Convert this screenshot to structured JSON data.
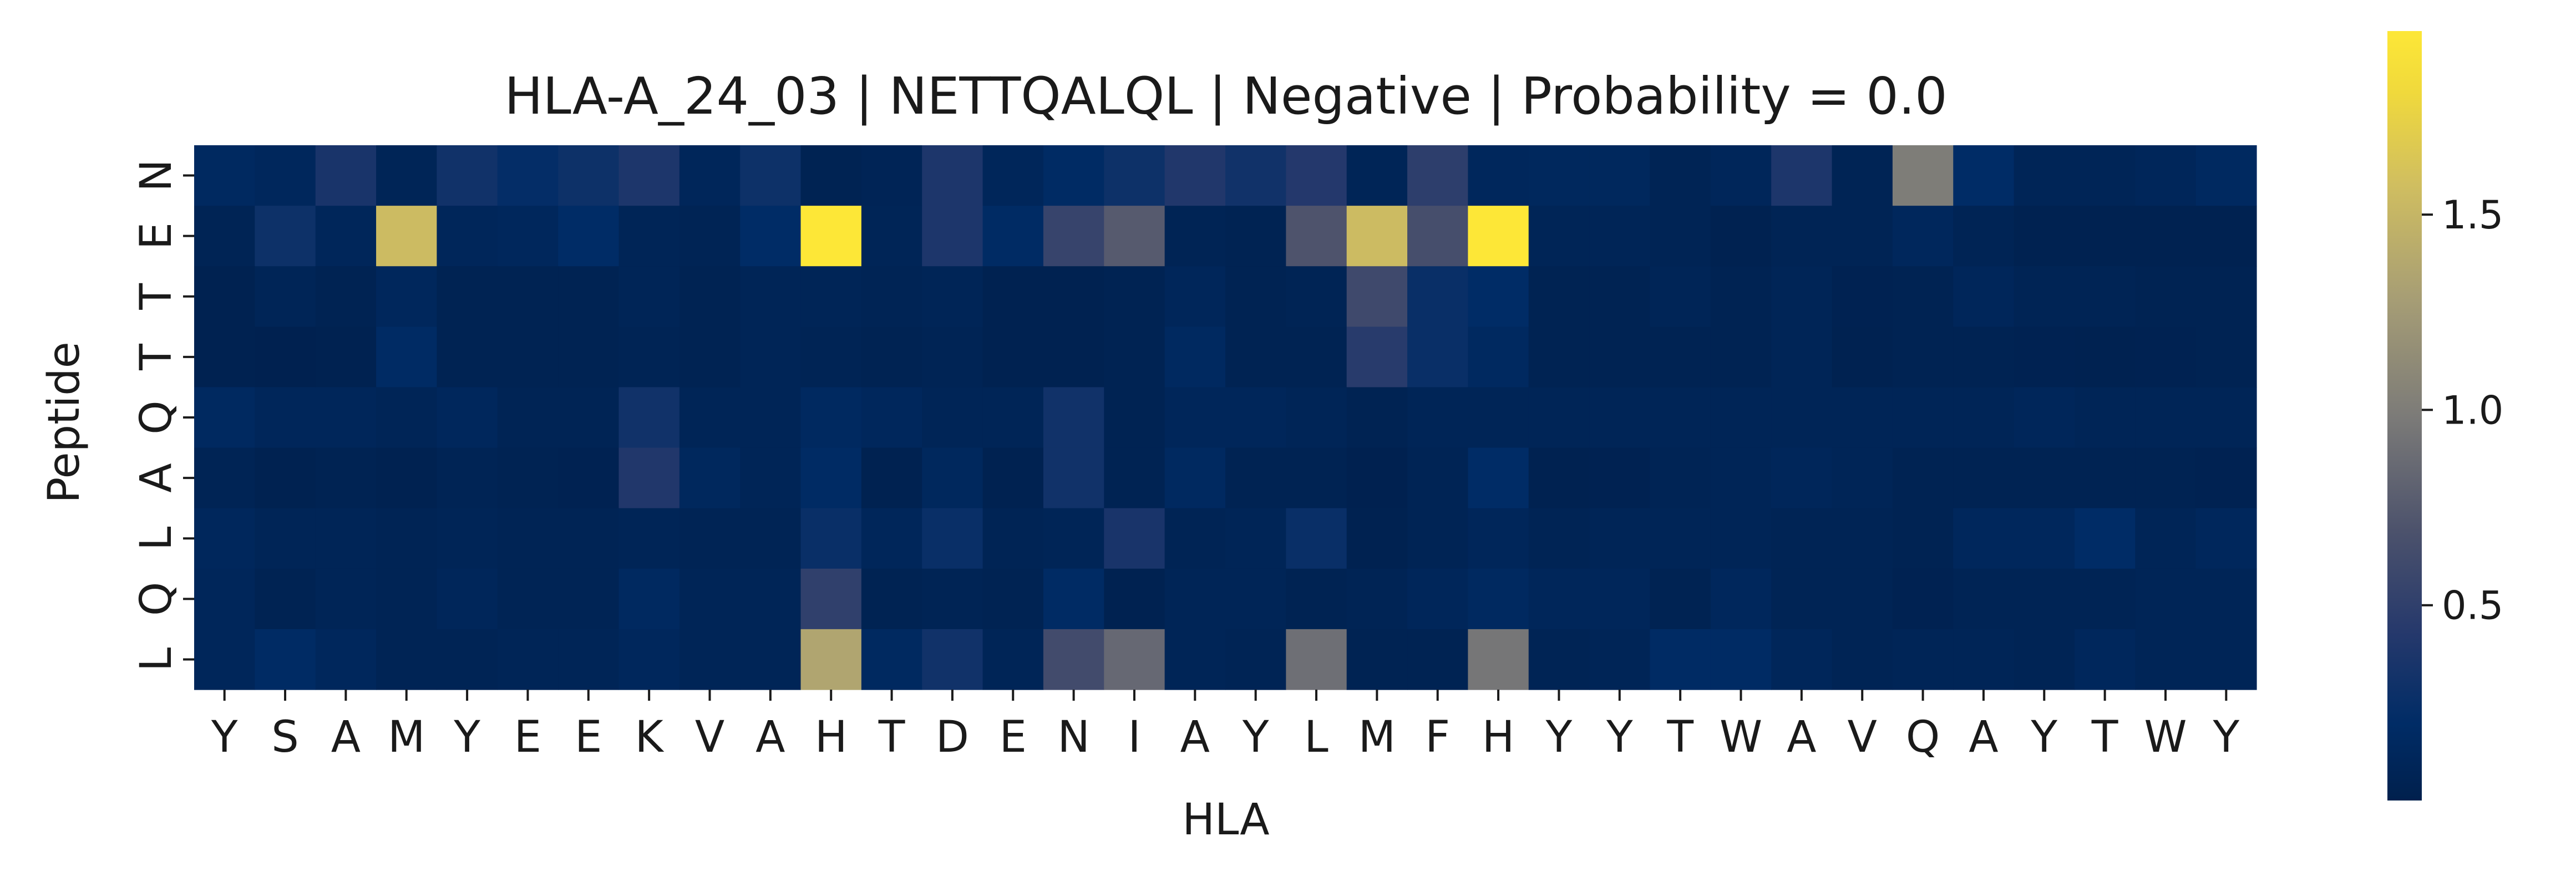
{
  "chart_data": {
    "type": "heatmap",
    "title": "HLA-A_24_03 | NETTQALQL | Negative | Probability = 0.0",
    "xlabel": "HLA",
    "ylabel": "Peptide",
    "x_categories": [
      "Y",
      "S",
      "A",
      "M",
      "Y",
      "E",
      "E",
      "K",
      "V",
      "A",
      "H",
      "T",
      "D",
      "E",
      "N",
      "I",
      "A",
      "Y",
      "L",
      "M",
      "F",
      "H",
      "Y",
      "Y",
      "T",
      "W",
      "A",
      "V",
      "Q",
      "A",
      "Y",
      "T",
      "W",
      "Y"
    ],
    "y_categories": [
      "N",
      "E",
      "T",
      "T",
      "Q",
      "A",
      "L",
      "Q",
      "L"
    ],
    "colormap": "cividis",
    "colorbar": {
      "min": 0.0,
      "max": 1.97,
      "ticks": [
        0.5,
        1.0,
        1.5
      ],
      "tick_labels": [
        "0.5",
        "1.0",
        "1.5"
      ]
    },
    "values": [
      [
        0.15,
        0.12,
        0.35,
        0.08,
        0.3,
        0.22,
        0.28,
        0.38,
        0.1,
        0.28,
        0.05,
        0.07,
        0.38,
        0.1,
        0.18,
        0.28,
        0.4,
        0.3,
        0.42,
        0.08,
        0.48,
        0.12,
        0.13,
        0.13,
        0.06,
        0.1,
        0.38,
        0.06,
        1.0,
        0.2,
        0.08,
        0.08,
        0.1,
        0.15
      ],
      [
        0.06,
        0.28,
        0.1,
        1.55,
        0.1,
        0.12,
        0.2,
        0.08,
        0.06,
        0.2,
        1.97,
        0.08,
        0.38,
        0.18,
        0.55,
        0.75,
        0.06,
        0.05,
        0.7,
        1.55,
        0.65,
        1.97,
        0.08,
        0.08,
        0.06,
        0.03,
        0.06,
        0.06,
        0.12,
        0.06,
        0.03,
        0.03,
        0.03,
        0.03
      ],
      [
        0.03,
        0.08,
        0.05,
        0.12,
        0.05,
        0.05,
        0.05,
        0.08,
        0.05,
        0.08,
        0.08,
        0.06,
        0.08,
        0.03,
        0.03,
        0.05,
        0.1,
        0.05,
        0.06,
        0.6,
        0.25,
        0.2,
        0.05,
        0.05,
        0.08,
        0.05,
        0.08,
        0.04,
        0.05,
        0.1,
        0.06,
        0.06,
        0.05,
        0.05
      ],
      [
        0.03,
        0.02,
        0.03,
        0.18,
        0.05,
        0.05,
        0.05,
        0.06,
        0.05,
        0.08,
        0.06,
        0.05,
        0.06,
        0.03,
        0.03,
        0.05,
        0.15,
        0.05,
        0.05,
        0.45,
        0.25,
        0.15,
        0.05,
        0.05,
        0.05,
        0.05,
        0.08,
        0.03,
        0.05,
        0.05,
        0.04,
        0.03,
        0.04,
        0.05
      ],
      [
        0.15,
        0.1,
        0.1,
        0.08,
        0.12,
        0.06,
        0.06,
        0.3,
        0.08,
        0.08,
        0.15,
        0.12,
        0.08,
        0.08,
        0.3,
        0.05,
        0.1,
        0.1,
        0.08,
        0.05,
        0.08,
        0.08,
        0.08,
        0.08,
        0.08,
        0.08,
        0.08,
        0.08,
        0.08,
        0.08,
        0.1,
        0.08,
        0.08,
        0.08
      ],
      [
        0.06,
        0.03,
        0.05,
        0.03,
        0.06,
        0.05,
        0.04,
        0.4,
        0.13,
        0.08,
        0.18,
        0.03,
        0.13,
        0.03,
        0.3,
        0.05,
        0.15,
        0.05,
        0.05,
        0.02,
        0.06,
        0.2,
        0.03,
        0.04,
        0.06,
        0.08,
        0.1,
        0.08,
        0.05,
        0.05,
        0.05,
        0.05,
        0.05,
        0.04
      ],
      [
        0.12,
        0.08,
        0.08,
        0.06,
        0.08,
        0.06,
        0.06,
        0.08,
        0.06,
        0.06,
        0.25,
        0.1,
        0.25,
        0.06,
        0.08,
        0.35,
        0.06,
        0.08,
        0.25,
        0.03,
        0.06,
        0.1,
        0.06,
        0.08,
        0.08,
        0.08,
        0.06,
        0.06,
        0.05,
        0.12,
        0.12,
        0.2,
        0.08,
        0.12
      ],
      [
        0.1,
        0.05,
        0.08,
        0.06,
        0.1,
        0.06,
        0.06,
        0.15,
        0.08,
        0.08,
        0.5,
        0.05,
        0.06,
        0.05,
        0.18,
        0.03,
        0.08,
        0.08,
        0.05,
        0.06,
        0.1,
        0.15,
        0.1,
        0.1,
        0.05,
        0.12,
        0.06,
        0.06,
        0.04,
        0.06,
        0.06,
        0.06,
        0.08,
        0.08
      ],
      [
        0.1,
        0.18,
        0.12,
        0.06,
        0.06,
        0.08,
        0.08,
        0.12,
        0.08,
        0.08,
        1.35,
        0.15,
        0.3,
        0.08,
        0.62,
        0.85,
        0.08,
        0.06,
        0.9,
        0.05,
        0.05,
        0.95,
        0.06,
        0.08,
        0.18,
        0.18,
        0.1,
        0.06,
        0.08,
        0.08,
        0.06,
        0.12,
        0.08,
        0.08
      ]
    ]
  }
}
